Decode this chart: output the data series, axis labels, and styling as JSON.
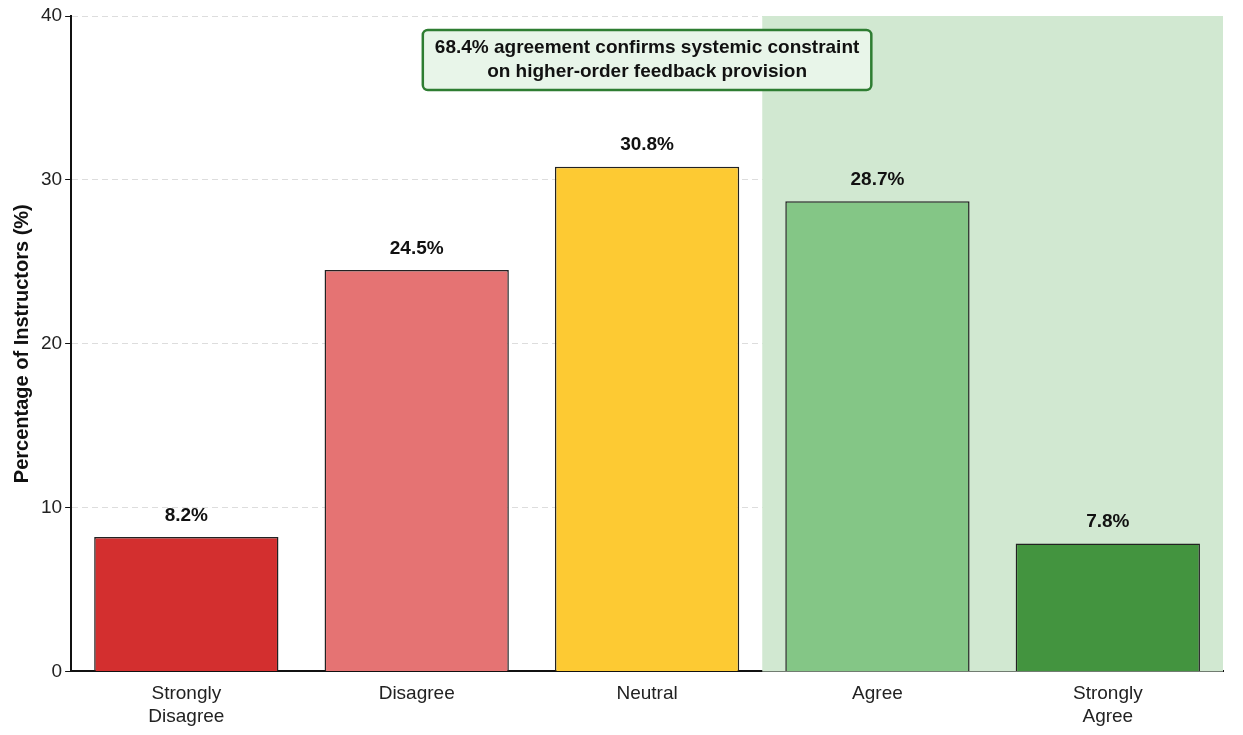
{
  "chart_data": {
    "type": "bar",
    "categories": [
      "Strongly Disagree",
      "Disagree",
      "Neutral",
      "Agree",
      "Strongly Agree"
    ],
    "values": [
      8.2,
      24.5,
      30.8,
      28.7,
      7.8
    ],
    "colors": [
      "#d32f2f",
      "#e57373",
      "#fdca33",
      "#84c686",
      "#43943f"
    ],
    "value_labels": [
      "8.2%",
      "24.5%",
      "30.8%",
      "28.7%",
      "7.8%"
    ],
    "ylabel": "Percentage of Instructors (%)",
    "ylim": [
      0,
      40
    ],
    "yticks": [
      0,
      10,
      20,
      30,
      40
    ],
    "grid": "y",
    "legend": false,
    "bands": [
      {
        "axis": "x",
        "from": "Agree",
        "to": "Strongly Agree",
        "color": "#d1e8d1"
      }
    ],
    "annotations": [
      "68.4% agreement confirms systemic constraint\non higher-order feedback provision"
    ]
  }
}
